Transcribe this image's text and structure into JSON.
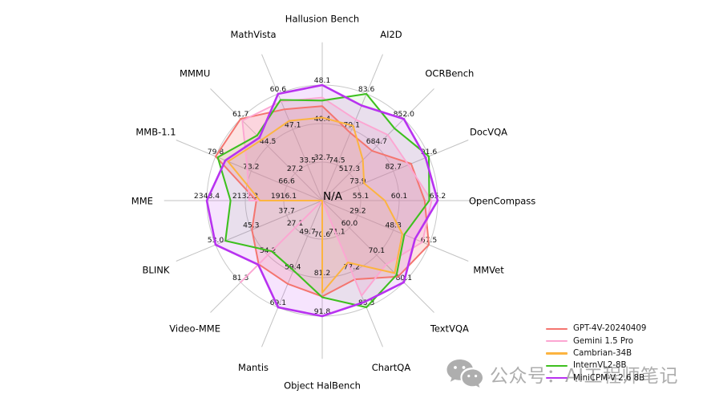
{
  "chart_data": {
    "type": "radar",
    "title": "",
    "center_label": "N/A",
    "grid": {
      "rings": 3,
      "spokes": 16
    },
    "axes": [
      {
        "label": "Hallusion Bench",
        "ticks": [
          "32.7",
          "40.4",
          "48.1"
        ]
      },
      {
        "label": "AI2D",
        "ticks": [
          "74.5",
          "79.1",
          "83.6"
        ]
      },
      {
        "label": "OCRBench",
        "ticks": [
          "517.3",
          "684.7",
          "852.0"
        ]
      },
      {
        "label": "DocVQA",
        "ticks": [
          "73.9",
          "82.7",
          "91.6"
        ]
      },
      {
        "label": "OpenCompass",
        "ticks": [
          "55.1",
          "60.1",
          "65.2"
        ]
      },
      {
        "label": "MMVet",
        "ticks": [
          "29.2",
          "48.3",
          "67.5"
        ]
      },
      {
        "label": "TextVQA",
        "ticks": [
          "60.0",
          "70.1",
          "80.1"
        ]
      },
      {
        "label": "ChartQA",
        "ticks": [
          "71.1",
          "77.2",
          "83.3"
        ]
      },
      {
        "label": "Object HalBench",
        "ticks": [
          "70.6",
          "81.2",
          "91.8"
        ]
      },
      {
        "label": "Mantis",
        "ticks": [
          "49.7",
          "59.4",
          "69.1"
        ]
      },
      {
        "label": "Video-MME",
        "ticks": [
          "27.1",
          "54.2",
          "81.3"
        ]
      },
      {
        "label": "BLINK",
        "ticks": [
          "37.7",
          "45.3",
          "53.0"
        ]
      },
      {
        "label": "MME",
        "ticks": [
          "1916.1",
          "2132.3",
          "2348.4"
        ]
      },
      {
        "label": "MMB-1.1",
        "ticks": [
          "66.6",
          "73.2",
          "79.8"
        ]
      },
      {
        "label": "MMMU",
        "ticks": [
          "27.2",
          "44.5",
          "61.7"
        ]
      },
      {
        "label": "MathVista",
        "ticks": [
          "33.5",
          "47.1",
          "60.6"
        ]
      }
    ],
    "series": [
      {
        "name": "GPT-4V-20240409",
        "color": "#f4756f",
        "values": [
          43.9,
          78.6,
          656.0,
          87.2,
          63.5,
          67.5,
          78.0,
          78.5,
          86.4,
          62.7,
          63.3,
          45.2,
          2070.2,
          79.8,
          61.7,
          54.7
        ]
      },
      {
        "name": "Gemini 1.5 Pro",
        "color": "#fca6d2",
        "values": [
          45.6,
          80.3,
          754.0,
          86.5,
          64.4,
          64.0,
          73.5,
          81.3,
          null,
          null,
          81.3,
          null,
          2110.6,
          73.9,
          60.6,
          57.7
        ]
      },
      {
        "name": "Cambrian-34B",
        "color": "#fcb440",
        "values": [
          41.6,
          79.5,
          600.0,
          75.5,
          58.3,
          53.2,
          76.7,
          75.6,
          85.3,
          null,
          null,
          null,
          2049.9,
          77.5,
          48.4,
          50.3
        ]
      },
      {
        "name": "InternVL2-8B",
        "color": "#3ec01f",
        "values": [
          45.0,
          83.6,
          794.0,
          91.6,
          64.1,
          54.3,
          77.4,
          83.3,
          86.6,
          59.0,
          50.4,
          50.9,
          2215.1,
          79.4,
          51.2,
          58.3
        ]
      },
      {
        "name": "MiniCPM-V 2.6 8B",
        "color": "#b832f0",
        "values": [
          48.1,
          82.1,
          852.0,
          90.8,
          65.2,
          60.0,
          80.1,
          82.4,
          91.8,
          69.1,
          63.7,
          53.0,
          2348.4,
          78.0,
          49.8,
          60.6
        ]
      }
    ],
    "legend_position": "lower-right",
    "note": "Each axis has its own scale; rings labeled per axis; N/A values plotted at center"
  },
  "watermark": {
    "text": "公众号：AI工程师笔记",
    "icon": "wechat-icon",
    "color": "#aeaeae"
  }
}
